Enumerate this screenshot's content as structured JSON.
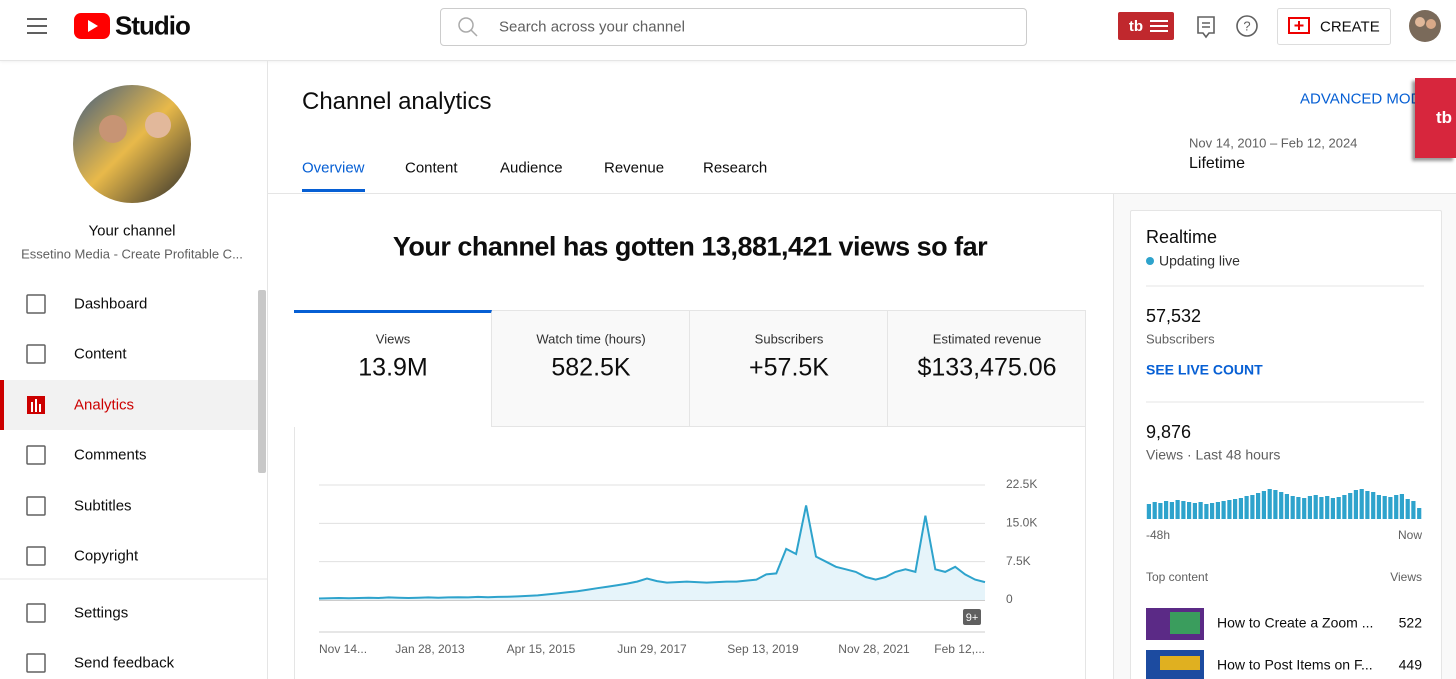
{
  "header": {
    "logo": "Studio",
    "search_placeholder": "Search across your channel",
    "create": "CREATE"
  },
  "sidebar": {
    "channel_title": "Your channel",
    "channel_name": "Essetino Media - Create Profitable C...",
    "nav": [
      "Dashboard",
      "Content",
      "Analytics",
      "Comments",
      "Subtitles",
      "Copyright"
    ],
    "active": "Analytics",
    "bottom": [
      "Settings",
      "Send feedback"
    ]
  },
  "main": {
    "title": "Channel analytics",
    "advanced": "ADVANCED MOD",
    "tabs": [
      "Overview",
      "Content",
      "Audience",
      "Revenue",
      "Research"
    ],
    "date_range": "Nov 14, 2010 – Feb 12, 2024",
    "period": "Lifetime",
    "headline": "Your channel has gotten 13,881,421 views so far",
    "cards": [
      {
        "label": "Views",
        "value": "13.9M"
      },
      {
        "label": "Watch time (hours)",
        "value": "582.5K"
      },
      {
        "label": "Subscribers",
        "value": "+57.5K"
      },
      {
        "label": "Estimated revenue",
        "value": "$133,475.06"
      }
    ]
  },
  "chart_data": {
    "type": "line",
    "x_labels": [
      "Nov 14...",
      "Jan 28, 2013",
      "Apr 15, 2015",
      "Jun 29, 2017",
      "Sep 13, 2019",
      "Nov 28, 2021",
      "Feb 12,..."
    ],
    "ylim": [
      0,
      22500
    ],
    "yticks": [
      0,
      {
        "value": 7500,
        "label": "7.5K"
      },
      {
        "value": 15000,
        "label": "15.0K"
      },
      {
        "value": 22500,
        "label": "22.5K"
      }
    ],
    "color": "#2ea3cc",
    "values": [
      300,
      350,
      400,
      350,
      400,
      450,
      400,
      500,
      450,
      400,
      450,
      500,
      450,
      500,
      550,
      500,
      600,
      550,
      600,
      650,
      700,
      800,
      900,
      1100,
      1300,
      1500,
      1700,
      2000,
      2300,
      2600,
      2900,
      3200,
      3600,
      4200,
      3700,
      3400,
      3500,
      3600,
      3500,
      3400,
      3500,
      3600,
      3600,
      3800,
      4000,
      5000,
      5200,
      10000,
      9000,
      18500,
      8500,
      7500,
      6500,
      6000,
      5500,
      4500,
      4000,
      4500,
      5500,
      6000,
      5500,
      16500,
      6000,
      5500,
      6500,
      5000,
      4000,
      3500
    ],
    "badge": "9+"
  },
  "realtime": {
    "title": "Realtime",
    "status": "Updating live",
    "subscribers": "57,532",
    "subscribers_label": "Subscribers",
    "see_live": "SEE LIVE COUNT",
    "views": "9,876",
    "views_label": "Views · Last 48 hours",
    "bars": {
      "ylim": [
        0,
        350
      ],
      "color": "#2ea3cc",
      "values": [
        150,
        170,
        160,
        180,
        170,
        190,
        180,
        170,
        160,
        170,
        150,
        160,
        170,
        180,
        190,
        200,
        210,
        230,
        240,
        260,
        280,
        300,
        290,
        270,
        250,
        230,
        220,
        210,
        230,
        240,
        220,
        230,
        210,
        220,
        240,
        260,
        290,
        300,
        280,
        270,
        240,
        230,
        220,
        240,
        250,
        200,
        180,
        110
      ]
    },
    "start_label": "-48h",
    "end_label": "Now",
    "top_content": "Top content",
    "views_header": "Views",
    "items": [
      {
        "title": "How to Create a Zoom ...",
        "views": "522"
      },
      {
        "title": "How to Post Items on F...",
        "views": "449"
      }
    ]
  }
}
